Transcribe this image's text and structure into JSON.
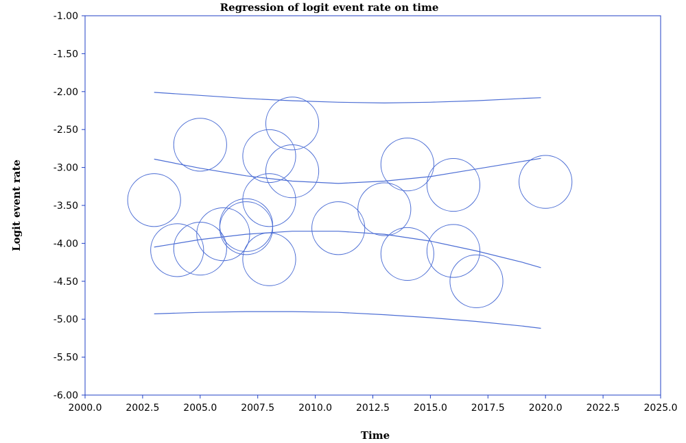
{
  "chart_data": {
    "type": "scatter",
    "title": "Regression of logit event rate on time",
    "xlabel": "Time",
    "ylabel": "Logit event rate",
    "xlim": [
      2000.0,
      2025.0
    ],
    "ylim": [
      -6.0,
      -1.0
    ],
    "x_ticks": [
      "2000.0",
      "2002.5",
      "2005.0",
      "2007.5",
      "2010.0",
      "2012.5",
      "2015.0",
      "2017.5",
      "2020.0",
      "2022.5",
      "2025.0"
    ],
    "y_ticks": [
      "-1.00",
      "-1.50",
      "-2.00",
      "-2.50",
      "-3.00",
      "-3.50",
      "-4.00",
      "-4.50",
      "-5.00",
      "-5.50",
      "-6.00"
    ],
    "grid": false,
    "colors": {
      "mark": "#4a6cd4",
      "axis": "#1f3fc4"
    },
    "points": [
      {
        "x": 2003.0,
        "y": -3.43
      },
      {
        "x": 2004.0,
        "y": -4.09
      },
      {
        "x": 2005.0,
        "y": -2.7
      },
      {
        "x": 2005.0,
        "y": -4.07
      },
      {
        "x": 2006.0,
        "y": -3.88
      },
      {
        "x": 2007.0,
        "y": -3.76
      },
      {
        "x": 2007.0,
        "y": -3.8
      },
      {
        "x": 2008.0,
        "y": -2.85
      },
      {
        "x": 2008.0,
        "y": -3.43
      },
      {
        "x": 2008.0,
        "y": -4.21
      },
      {
        "x": 2009.0,
        "y": -2.42
      },
      {
        "x": 2009.0,
        "y": -3.05
      },
      {
        "x": 2011.0,
        "y": -3.8
      },
      {
        "x": 2013.0,
        "y": -3.55
      },
      {
        "x": 2014.0,
        "y": -2.96
      },
      {
        "x": 2014.0,
        "y": -4.14
      },
      {
        "x": 2016.0,
        "y": -3.23
      },
      {
        "x": 2016.0,
        "y": -4.1
      },
      {
        "x": 2017.0,
        "y": -4.5
      },
      {
        "x": 2020.0,
        "y": -3.19
      }
    ],
    "point_radius_x_units": 1.15,
    "series": [
      {
        "role": "prediction-upper",
        "x": [
          2003,
          2005,
          2007,
          2009,
          2011,
          2013,
          2015,
          2017,
          2019,
          2019.8
        ],
        "y": [
          -2.01,
          -2.05,
          -2.09,
          -2.12,
          -2.14,
          -2.15,
          -2.14,
          -2.12,
          -2.09,
          -2.08
        ]
      },
      {
        "role": "ci-upper",
        "x": [
          2003,
          2005,
          2007,
          2009,
          2011,
          2013,
          2015,
          2017,
          2019,
          2019.8
        ],
        "y": [
          -2.89,
          -3.01,
          -3.11,
          -3.18,
          -3.21,
          -3.18,
          -3.12,
          -3.02,
          -2.92,
          -2.88
        ]
      },
      {
        "role": "ci-lower",
        "x": [
          2003,
          2005,
          2007,
          2009,
          2011,
          2013,
          2015,
          2017,
          2019,
          2019.8
        ],
        "y": [
          -4.05,
          -3.95,
          -3.88,
          -3.84,
          -3.84,
          -3.88,
          -3.97,
          -4.1,
          -4.25,
          -4.32
        ]
      },
      {
        "role": "prediction-lower",
        "x": [
          2003,
          2005,
          2007,
          2009,
          2011,
          2013,
          2015,
          2017,
          2019,
          2019.8
        ],
        "y": [
          -4.93,
          -4.91,
          -4.9,
          -4.9,
          -4.91,
          -4.94,
          -4.98,
          -5.03,
          -5.09,
          -5.12
        ]
      }
    ]
  }
}
